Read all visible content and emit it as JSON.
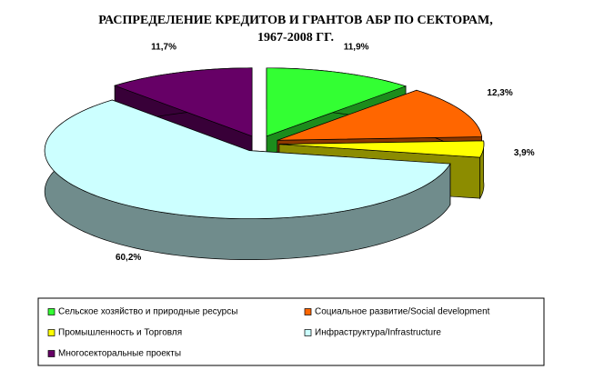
{
  "chart_data": {
    "type": "pie",
    "title": [
      "РАСПРЕДЕЛЕНИЕ КРЕДИТОВ И ГРАНТОВ АБР ПО СЕКТОРАМ,",
      "1967-2008 ГГ."
    ],
    "categories": [
      "Сельское хозяйство и природные ресурсы",
      "Социальное развитие/Social development",
      "Промышленность и Торговля",
      "Инфраструктура/Infrastructure",
      "Многосекторальные проекты"
    ],
    "values": [
      11.9,
      12.3,
      3.9,
      60.2,
      11.7
    ],
    "value_labels": [
      "11,9%",
      "12,3%",
      "3,9%",
      "60,2%",
      "11,7%"
    ],
    "colors": [
      "#33ff33",
      "#ff6600",
      "#ffff00",
      "#ccffff",
      "#660066"
    ]
  }
}
